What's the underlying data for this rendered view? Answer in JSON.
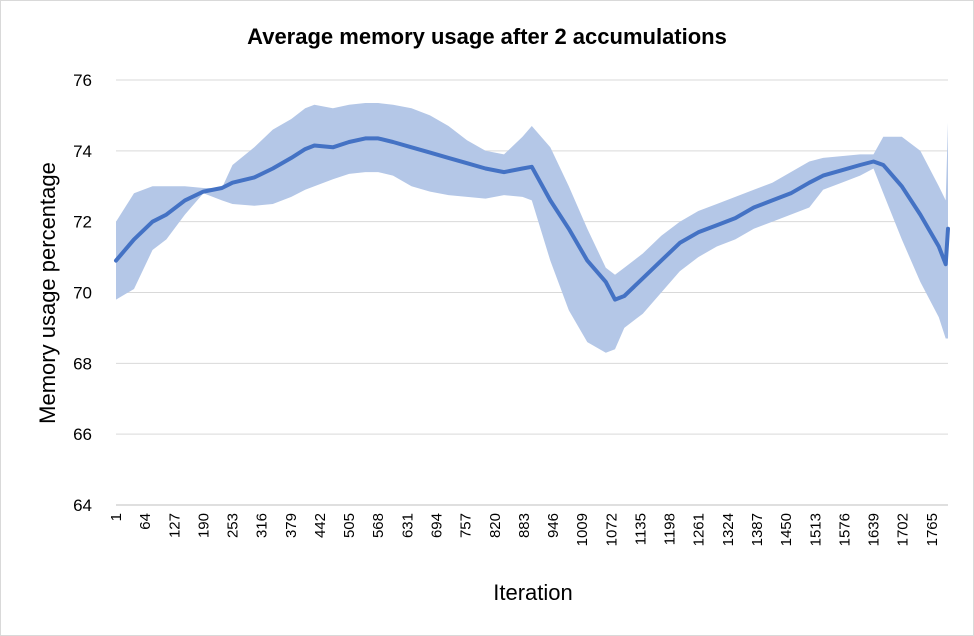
{
  "chart_data": {
    "type": "line",
    "title": "Average memory usage after 2 accumulations",
    "xlabel": "Iteration",
    "ylabel": "Memory usage percentage",
    "ylim": [
      64,
      76
    ],
    "yticks": [
      64,
      66,
      68,
      70,
      72,
      74,
      76
    ],
    "xlim": [
      1,
      1800
    ],
    "xticks": [
      1,
      64,
      127,
      190,
      253,
      316,
      379,
      442,
      505,
      568,
      631,
      694,
      757,
      820,
      883,
      946,
      1009,
      1072,
      1135,
      1198,
      1261,
      1324,
      1387,
      1450,
      1513,
      1576,
      1639,
      1702,
      1765
    ],
    "grid": true,
    "colors": {
      "line": "#4472c4",
      "band": "#b4c7e7",
      "grid": "#d9d9d9"
    },
    "series": [
      {
        "values": {
          "x": [
            1,
            40,
            80,
            110,
            150,
            190,
            230,
            253,
            300,
            340,
            380,
            410,
            430,
            470,
            505,
            540,
            568,
            600,
            640,
            680,
            720,
            760,
            800,
            840,
            880,
            900,
            940,
            980,
            1020,
            1060,
            1080,
            1100,
            1140,
            1180,
            1220,
            1260,
            1300,
            1340,
            1380,
            1420,
            1460,
            1500,
            1530,
            1570,
            1610,
            1639,
            1660,
            1700,
            1740,
            1780,
            1795,
            1800
          ],
          "y": [
            70.9,
            71.5,
            72.0,
            72.2,
            72.6,
            72.85,
            72.95,
            73.1,
            73.25,
            73.5,
            73.8,
            74.05,
            74.15,
            74.1,
            74.25,
            74.35,
            74.35,
            74.25,
            74.1,
            73.95,
            73.8,
            73.65,
            73.5,
            73.4,
            73.5,
            73.55,
            72.6,
            71.8,
            70.9,
            70.3,
            69.8,
            69.9,
            70.4,
            70.9,
            71.4,
            71.7,
            71.9,
            72.1,
            72.4,
            72.6,
            72.8,
            73.1,
            73.3,
            73.45,
            73.6,
            73.7,
            73.6,
            73.0,
            72.2,
            71.3,
            70.8,
            71.8
          ]
        },
        "upper": [
          72.0,
          72.8,
          73.0,
          73.0,
          73.0,
          72.95,
          72.95,
          73.6,
          74.1,
          74.6,
          74.9,
          75.2,
          75.3,
          75.2,
          75.3,
          75.35,
          75.35,
          75.3,
          75.2,
          75.0,
          74.7,
          74.3,
          74.0,
          73.9,
          74.4,
          74.7,
          74.1,
          73.0,
          71.8,
          70.7,
          70.5,
          70.7,
          71.1,
          71.6,
          72.0,
          72.3,
          72.5,
          72.7,
          72.9,
          73.1,
          73.4,
          73.7,
          73.8,
          73.85,
          73.9,
          73.9,
          74.4,
          74.4,
          74.0,
          73.0,
          72.6,
          74.8
        ],
        "lower": [
          69.8,
          70.1,
          71.2,
          71.5,
          72.2,
          72.8,
          72.6,
          72.5,
          72.45,
          72.5,
          72.7,
          72.9,
          73.0,
          73.2,
          73.35,
          73.4,
          73.4,
          73.3,
          73.0,
          72.85,
          72.75,
          72.7,
          72.65,
          72.75,
          72.7,
          72.6,
          70.9,
          69.5,
          68.6,
          68.3,
          68.4,
          69.0,
          69.4,
          70.0,
          70.6,
          71.0,
          71.3,
          71.5,
          71.8,
          72.0,
          72.2,
          72.4,
          72.9,
          73.1,
          73.3,
          73.5,
          72.8,
          71.5,
          70.3,
          69.3,
          68.7,
          68.7
        ]
      }
    ]
  }
}
